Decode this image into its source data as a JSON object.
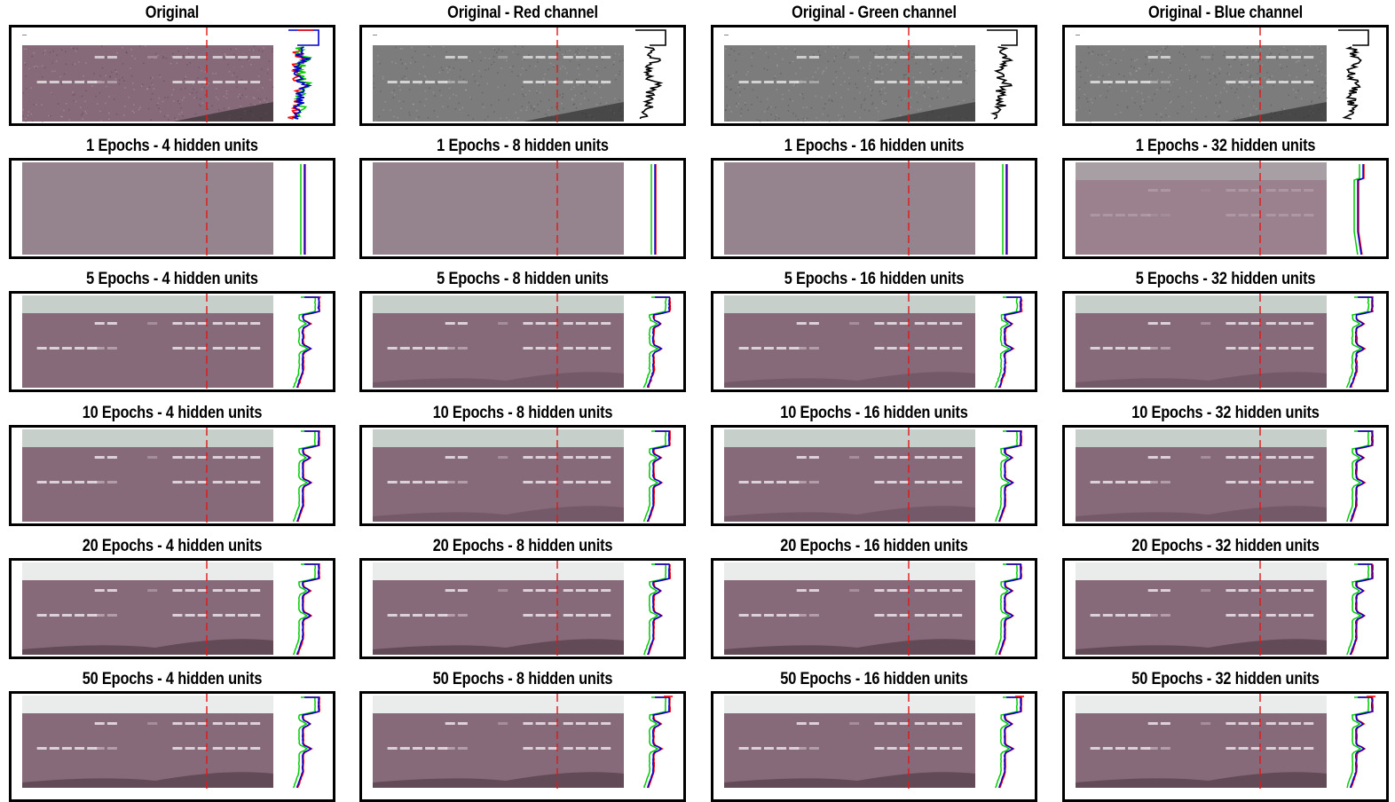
{
  "columns": [
    {
      "id": "c4",
      "hidden_units": 4
    },
    {
      "id": "c8",
      "hidden_units": 8
    },
    {
      "id": "c16",
      "hidden_units": 16
    },
    {
      "id": "c32",
      "hidden_units": 32
    }
  ],
  "panels": [
    [
      {
        "title": "Original",
        "kind": "original-color"
      },
      {
        "title": "Original - Red channel",
        "kind": "gray"
      },
      {
        "title": "Original - Green channel",
        "kind": "gray"
      },
      {
        "title": "Original - Blue channel",
        "kind": "gray"
      }
    ],
    [
      {
        "title": "1 Epochs - 4 hidden units",
        "kind": "flat",
        "epochs": 1
      },
      {
        "title": "1 Epochs - 8 hidden units",
        "kind": "flat",
        "epochs": 1
      },
      {
        "title": "1 Epochs - 16 hidden units",
        "kind": "flat",
        "epochs": 1
      },
      {
        "title": "1 Epochs - 32 hidden units",
        "kind": "faint",
        "epochs": 1
      }
    ],
    [
      {
        "title": "5 Epochs - 4 hidden units",
        "kind": "recon",
        "epochs": 5
      },
      {
        "title": "5 Epochs - 8 hidden units",
        "kind": "recon",
        "epochs": 5
      },
      {
        "title": "5 Epochs - 16 hidden units",
        "kind": "recon",
        "epochs": 5
      },
      {
        "title": "5 Epochs - 32 hidden units",
        "kind": "recon",
        "epochs": 5
      }
    ],
    [
      {
        "title": "10 Epochs - 4 hidden units",
        "kind": "recon",
        "epochs": 10
      },
      {
        "title": "10 Epochs - 8 hidden units",
        "kind": "recon",
        "epochs": 10
      },
      {
        "title": "10 Epochs - 16 hidden units",
        "kind": "recon",
        "epochs": 10
      },
      {
        "title": "10 Epochs - 32 hidden units",
        "kind": "recon",
        "epochs": 10
      }
    ],
    [
      {
        "title": "20 Epochs - 4 hidden units",
        "kind": "recon",
        "epochs": 20
      },
      {
        "title": "20 Epochs - 8 hidden units",
        "kind": "recon",
        "epochs": 20
      },
      {
        "title": "20 Epochs - 16 hidden units",
        "kind": "recon",
        "epochs": 20
      },
      {
        "title": "20 Epochs - 32 hidden units",
        "kind": "recon",
        "epochs": 20
      }
    ],
    [
      {
        "title": "50 Epochs - 4 hidden units",
        "kind": "recon",
        "epochs": 50
      },
      {
        "title": "50 Epochs - 8 hidden units",
        "kind": "recon",
        "epochs": 50
      },
      {
        "title": "50 Epochs - 16 hidden units",
        "kind": "recon",
        "epochs": 50
      },
      {
        "title": "50 Epochs - 32 hidden units",
        "kind": "recon",
        "epochs": 50
      }
    ]
  ],
  "colors": {
    "gel": "#876a7a",
    "gel_top_band": "#c7cfcb",
    "band": "#e6dde2",
    "gray_gel": "#7c7c7c",
    "dashed_line": "#e01818",
    "frame": "#000000",
    "profile_red": "#ff0000",
    "profile_green": "#00cc00",
    "profile_blue": "#0000cc",
    "profile_gray": "#000000"
  },
  "icons": {
    "dashed_line": "vertical-dashed-red-line",
    "profile": "intensity-profile-plot"
  }
}
